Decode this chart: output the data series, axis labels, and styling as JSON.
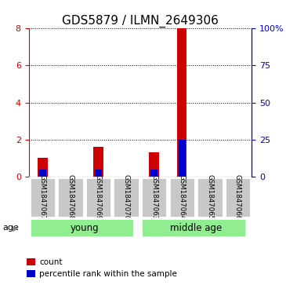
{
  "title": "GDS5879 / ILMN_2649306",
  "samples": [
    "GSM1847067",
    "GSM1847068",
    "GSM1847069",
    "GSM1847070",
    "GSM1847063",
    "GSM1847064",
    "GSM1847065",
    "GSM1847066"
  ],
  "count_values": [
    1.0,
    0.0,
    1.6,
    0.0,
    1.3,
    8.0,
    0.0,
    0.0
  ],
  "percentile_values": [
    5.0,
    0.0,
    5.0,
    0.0,
    5.0,
    25.0,
    0.0,
    0.0
  ],
  "ylim_left": [
    0,
    8
  ],
  "ylim_right": [
    0,
    100
  ],
  "left_yticks": [
    0,
    2,
    4,
    6,
    8
  ],
  "right_yticks": [
    0,
    25,
    50,
    75,
    100
  ],
  "right_yticklabels": [
    "0",
    "25",
    "50",
    "75",
    "100%"
  ],
  "groups": [
    {
      "label": "young",
      "start": 0,
      "end": 4,
      "color": "#90EE90"
    },
    {
      "label": "middle age",
      "start": 4,
      "end": 8,
      "color": "#90EE90"
    }
  ],
  "age_label": "age",
  "count_color": "#CC0000",
  "percentile_color": "#0000CC",
  "bg_color": "#ffffff",
  "plot_bg": "#ffffff",
  "tick_label_color_left": "#CC0000",
  "tick_label_color_right": "#0000CC",
  "legend_count": "count",
  "legend_percentile": "percentile rank within the sample",
  "title_fontsize": 11,
  "tick_fontsize": 8,
  "sample_box_color": "#C8C8C8",
  "sample_box_edge": "#ffffff"
}
